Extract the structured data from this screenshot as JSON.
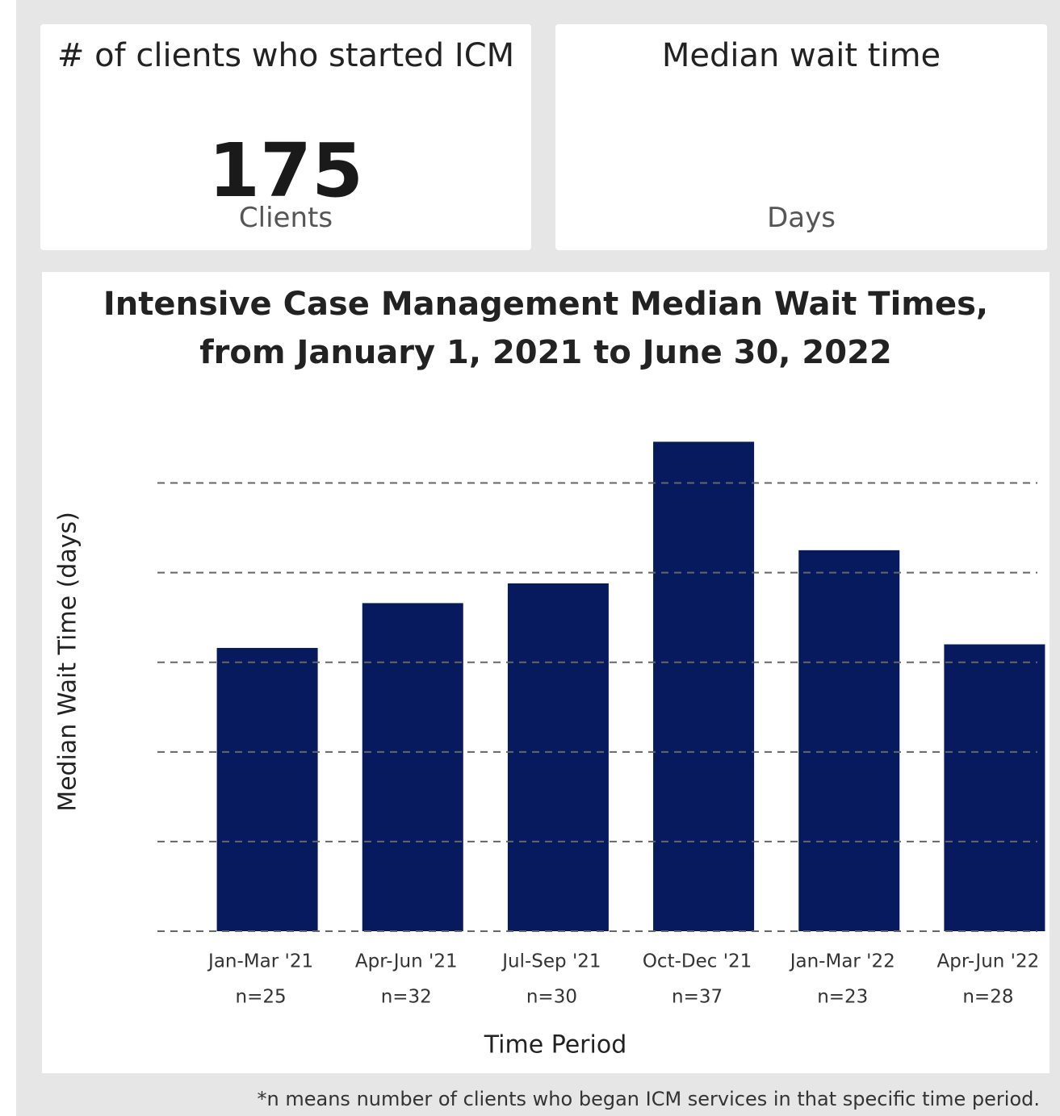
{
  "cards": [
    {
      "title": "# of clients who started ICM",
      "value": 175,
      "unit": "Clients"
    },
    {
      "title": "Median wait time",
      "unit": "Days"
    }
  ],
  "chart_data": {
    "type": "bar",
    "title": "Intensive Case Management Median Wait Times, from January 1, 2021 to June 30, 2022",
    "x_label": "Time Period",
    "y_label": "Median Wait Time (days)",
    "categories": [
      "Jan-Mar '21",
      "Apr-Jun '21",
      "Jul-Sep '21",
      "Oct-Dec '21",
      "Jan-Mar '22",
      "Apr-Jun '22"
    ],
    "sample_sizes": [
      "n=25",
      "n=32",
      "n=30",
      "n=37",
      "n=23",
      "n=28"
    ],
    "values": [
      3.16,
      3.66,
      3.88,
      5.46,
      4.25,
      3.2
    ],
    "color": "#071a5e",
    "ylim": [
      0,
      5.5
    ],
    "yticks": [
      0,
      1,
      2,
      3,
      4,
      5
    ],
    "grid": true
  },
  "footnote": "*n means number of clients who began ICM services in that specific time period."
}
